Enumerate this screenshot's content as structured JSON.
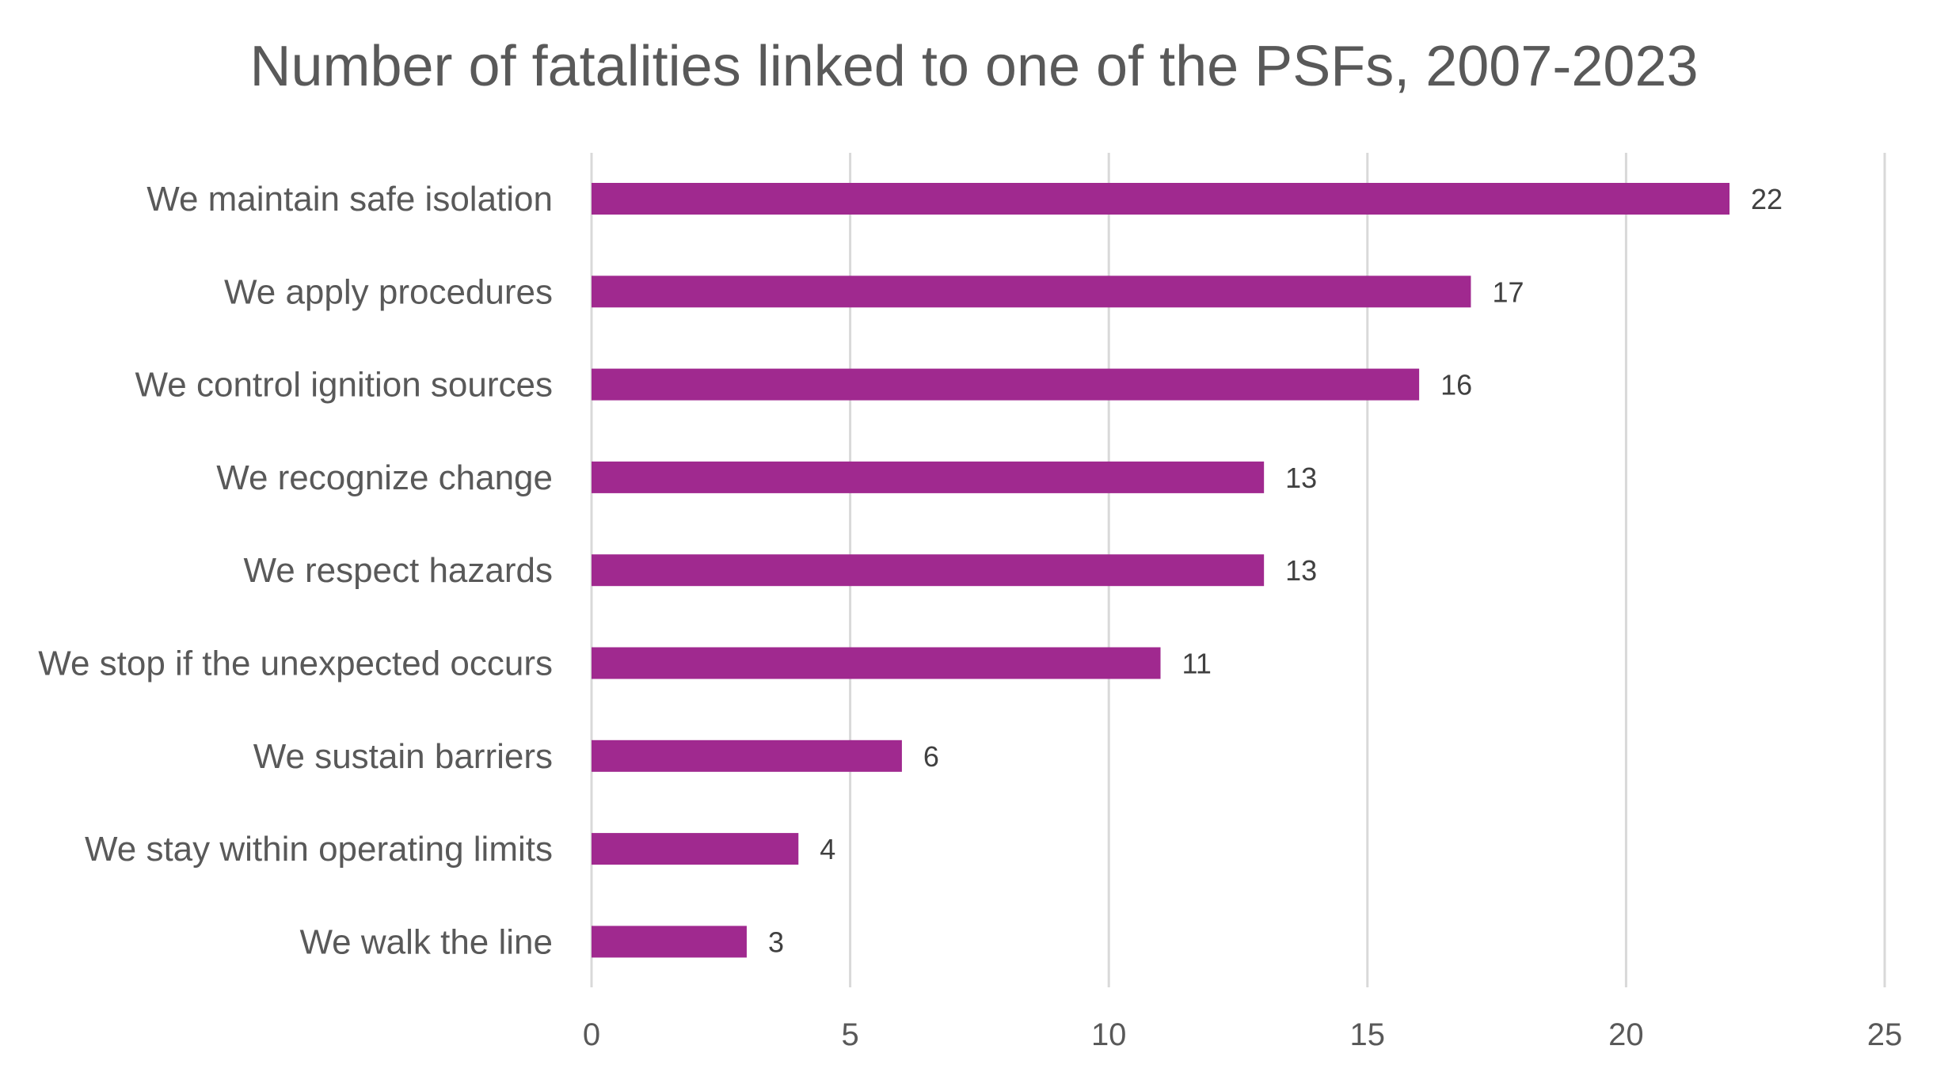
{
  "chart_data": {
    "type": "bar",
    "orientation": "horizontal",
    "title": "Number of fatalities linked to one of the PSFs, 2007-2023",
    "categories": [
      "We maintain safe isolation",
      "We apply procedures",
      "We control ignition sources",
      "We recognize change",
      "We respect hazards",
      "We stop if the unexpected occurs",
      "We sustain barriers",
      "We stay within operating limits",
      "We walk the line"
    ],
    "values": [
      22,
      17,
      16,
      13,
      13,
      11,
      6,
      4,
      3
    ],
    "xlim": [
      0,
      25
    ],
    "xticks": [
      0,
      5,
      10,
      15,
      20,
      25
    ],
    "xlabel": "",
    "ylabel": "",
    "grid": "vertical",
    "legend": "none",
    "data_labels": true,
    "bar_color": "#A0298F",
    "gridline_color": "#D9D9D9",
    "text_color": "#595959"
  }
}
